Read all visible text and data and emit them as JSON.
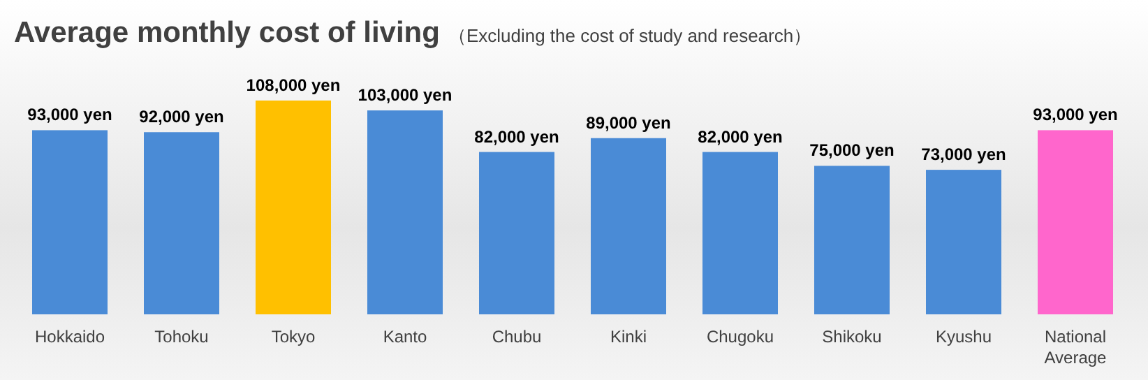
{
  "chart_data": {
    "type": "bar",
    "title": "Average monthly cost of living",
    "subtitle": "（Excluding the cost of study and research）",
    "categories": [
      "Hokkaido",
      "Tohoku",
      "Tokyo",
      "Kanto",
      "Chubu",
      "Kinki",
      "Chugoku",
      "Shikoku",
      "Kyushu",
      "National Average"
    ],
    "values": [
      93000,
      92000,
      108000,
      103000,
      82000,
      89000,
      82000,
      75000,
      73000,
      93000
    ],
    "value_labels": [
      "93,000 yen",
      "92,000 yen",
      "108,000 yen",
      "103,000 yen",
      "82,000 yen",
      "89,000 yen",
      "82,000 yen",
      "75,000 yen",
      "73,000 yen",
      "93,000 yen"
    ],
    "colors": [
      "#4a8bd6",
      "#4a8bd6",
      "#ffc000",
      "#4a8bd6",
      "#4a8bd6",
      "#4a8bd6",
      "#4a8bd6",
      "#4a8bd6",
      "#4a8bd6",
      "#ff66cc"
    ]
  }
}
